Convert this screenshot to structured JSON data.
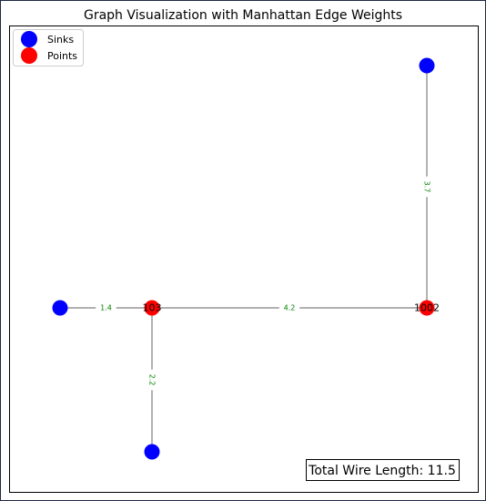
{
  "title": "Graph Visualization with Manhattan Edge Weights",
  "colors": {
    "sink": "#0000ff",
    "point": "#ff0000",
    "edge": "#808080",
    "edge_label": "#008000",
    "frame": "#000000",
    "window_border": "#1f2a44"
  },
  "legend": {
    "placement": "top-left",
    "items": [
      {
        "label": "Sinks",
        "kind": "sink"
      },
      {
        "label": "Points",
        "kind": "point"
      }
    ]
  },
  "chart_data": {
    "type": "network",
    "nodes": [
      {
        "id": "sink-left",
        "label": "",
        "kind": "sink"
      },
      {
        "id": "pt-103",
        "label": "103",
        "kind": "point"
      },
      {
        "id": "pt-1002",
        "label": "1002",
        "kind": "point"
      },
      {
        "id": "sink-top",
        "label": "",
        "kind": "sink"
      },
      {
        "id": "sink-bottom",
        "label": "",
        "kind": "sink"
      }
    ],
    "edges": [
      {
        "source": "sink-left",
        "target": "pt-103",
        "weight": "1.4"
      },
      {
        "source": "pt-103",
        "target": "pt-1002",
        "weight": "4.2"
      },
      {
        "source": "sink-top",
        "target": "pt-1002",
        "weight": "3.7"
      },
      {
        "source": "pt-103",
        "target": "sink-bottom",
        "weight": "2.2"
      }
    ]
  },
  "total_wire_length": "Total Wire Length: 11.5"
}
